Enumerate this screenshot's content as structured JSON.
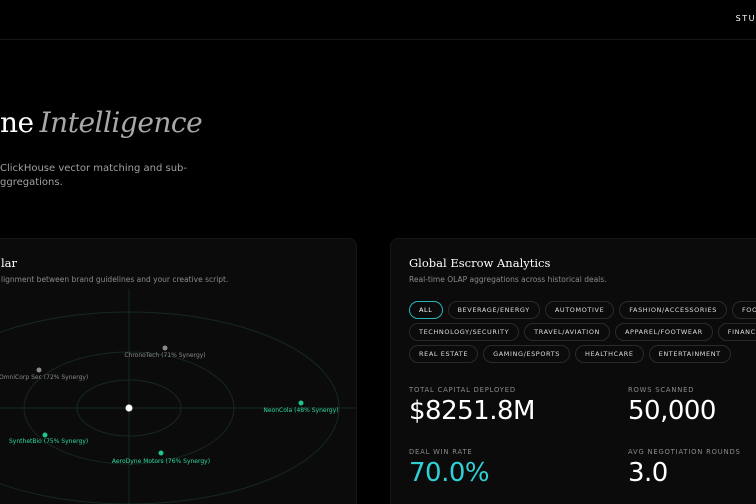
{
  "nav": {
    "item": "STU"
  },
  "hero": {
    "title_plain": "ne",
    "title_italic": "Intelligence",
    "subtitle_lines": [
      "ClickHouse vector matching and sub-",
      "ggregations."
    ]
  },
  "radar": {
    "title": "lar",
    "subtitle": "lignment between brand guidelines and your creative script.",
    "points": [
      {
        "label": "ChronoTech (71% Synergy)",
        "tone": "muted"
      },
      {
        "label": "OmniCorp Sec (72% Synergy)",
        "tone": "muted"
      },
      {
        "label": "NeonCola (48% Synergy)",
        "tone": "accent"
      },
      {
        "label": "SynthetBio (75% Synergy)",
        "tone": "accent"
      },
      {
        "label": "AeroDyne Motors (76% Synergy)",
        "tone": "accent"
      }
    ]
  },
  "analytics": {
    "title": "Global Escrow Analytics",
    "subtitle": "Real-time OLAP aggregations across historical deals.",
    "filter_rows": [
      [
        "ALL",
        "BEVERAGE/ENERGY",
        "AUTOMOTIVE",
        "FASHION/ACCESSORIES",
        "FOOD"
      ],
      [
        "TECHNOLOGY/SECURITY",
        "TRAVEL/AVIATION",
        "APPAREL/FOOTWEAR",
        "FINANCE/BANK"
      ],
      [
        "REAL ESTATE",
        "GAMING/ESPORTS",
        "HEALTHCARE",
        "ENTERTAINMENT"
      ]
    ],
    "active_filter": "ALL",
    "stats": [
      {
        "label": "TOTAL CAPITAL DEPLOYED",
        "value": "$8251.8M"
      },
      {
        "label": "ROWS SCANNED",
        "value": "50,000"
      },
      {
        "label": "DEAL WIN RATE",
        "value": "70.0%",
        "accent": true
      },
      {
        "label": "AVG NEGOTIATION ROUNDS",
        "value": "3.0"
      }
    ]
  }
}
